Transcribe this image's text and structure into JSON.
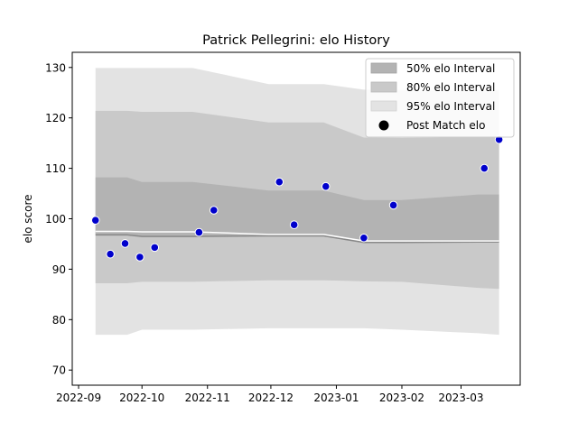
{
  "chart_data": {
    "type": "line",
    "title": "Patrick Pellegrini: elo History",
    "xlabel": "",
    "ylabel": "elo score",
    "x_ticks": [
      "2022-09",
      "2022-10",
      "2022-11",
      "2022-12",
      "2023-01",
      "2023-02",
      "2023-03"
    ],
    "y_ticks": [
      70,
      80,
      90,
      100,
      110,
      120,
      130
    ],
    "xlim": [
      "2022-08-29",
      "2023-03-29"
    ],
    "ylim": [
      67,
      133
    ],
    "grid": false,
    "legend_position": "top-right",
    "band_dates": [
      "2022-09-09",
      "2022-09-24",
      "2022-10-01",
      "2022-10-25",
      "2022-11-30",
      "2022-12-26",
      "2023-01-14",
      "2023-02-01",
      "2023-03-09",
      "2023-03-19"
    ],
    "series": [
      {
        "name": "50% elo Interval",
        "type": "band",
        "color": "#b3b3b3",
        "lower": [
          96.8,
          96.8,
          96.5,
          96.5,
          96.6,
          96.6,
          95.3,
          95.3,
          95.4,
          95.4
        ],
        "upper": [
          108.2,
          108.2,
          107.3,
          107.3,
          105.6,
          105.6,
          103.7,
          103.7,
          104.8,
          104.8
        ]
      },
      {
        "name": "80% elo Interval",
        "type": "band",
        "color": "#c9c9c9",
        "lower": [
          87.2,
          87.2,
          87.5,
          87.5,
          87.8,
          87.8,
          87.6,
          87.5,
          86.3,
          86.1
        ],
        "upper": [
          121.4,
          121.4,
          121.2,
          121.2,
          119.1,
          119.1,
          116.1,
          116.0,
          116.2,
          116.2
        ]
      },
      {
        "name": "95% elo Interval",
        "type": "band",
        "color": "#e3e3e3",
        "lower": [
          77.0,
          77.0,
          78.0,
          78.0,
          78.3,
          78.3,
          78.3,
          78.0,
          77.3,
          77.0
        ],
        "upper": [
          129.9,
          129.9,
          129.9,
          129.9,
          126.7,
          126.7,
          125.6,
          125.5,
          125.5,
          125.5
        ]
      },
      {
        "name": "Post Match elo",
        "type": "scatter",
        "color": "#0000cc",
        "points": [
          {
            "x": "2022-09-09",
            "y": 99.7
          },
          {
            "x": "2022-09-16",
            "y": 93.0
          },
          {
            "x": "2022-09-23",
            "y": 95.1
          },
          {
            "x": "2022-09-30",
            "y": 92.4
          },
          {
            "x": "2022-10-07",
            "y": 94.3
          },
          {
            "x": "2022-10-28",
            "y": 97.3
          },
          {
            "x": "2022-11-04",
            "y": 101.7
          },
          {
            "x": "2022-12-05",
            "y": 107.3
          },
          {
            "x": "2022-12-12",
            "y": 98.8
          },
          {
            "x": "2022-12-27",
            "y": 106.4
          },
          {
            "x": "2023-01-14",
            "y": 96.2
          },
          {
            "x": "2023-01-28",
            "y": 102.7
          },
          {
            "x": "2023-03-12",
            "y": 110.0
          },
          {
            "x": "2023-03-19",
            "y": 115.7
          }
        ]
      }
    ],
    "median_line": {
      "color": "#888888",
      "values": [
        96.8,
        96.8,
        96.5,
        96.5,
        96.6,
        96.6,
        95.3,
        95.3,
        95.4,
        95.4
      ]
    },
    "mean_line": {
      "color": "#ffffff",
      "values": [
        97.5,
        97.5,
        97.4,
        97.4,
        96.9,
        96.9,
        95.6,
        95.6,
        95.6,
        95.6
      ]
    }
  }
}
